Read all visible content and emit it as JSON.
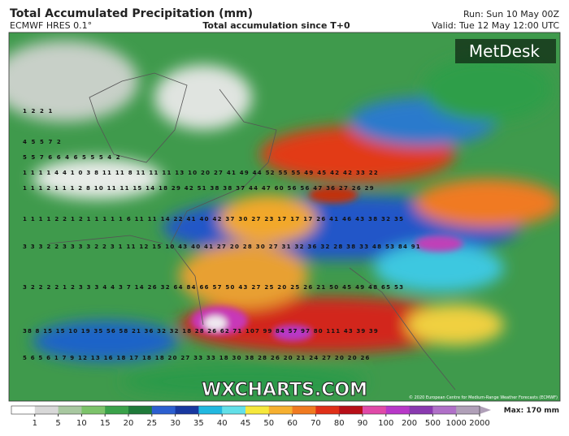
{
  "header": {
    "title": "Total Accumulated Precipitation (mm)",
    "model": "ECMWF HRES 0.1°",
    "subtitle": "Total accumulation since T+0",
    "run": "Run: Sun 10 May 00Z",
    "valid": "Valid: Tue 12 May 12:00 UTC"
  },
  "branding": {
    "logo": "MetDesk",
    "watermark": "WXCHARTS.COM",
    "copyright": "© 2020 European Centre for Medium-Range Weather Forecasts (ECMWF)"
  },
  "grid_labels": [
    "1 2 2 1",
    "4 5 5 7 2",
    "5 5 7 6 6 4 6 5 5 5 4 2",
    "1 1 1 1 4 4 1 0 3 8 11 11 8 11 11 11 13 10 20 27 41 49 44 52 55 55 49 45 42 42 33 22",
    "1 1 1 2 1 1 1 2 8 10 11 11 15 14 18 29 42 51 38 38 37 44 47 60 56 56 47 36 27 26 29",
    "1 1 1 1 2 2 1 2 1 1 1 1 1 6 11 11 14 22 41 40 42 37 30 27 23 17 17 17 26 41 46 43 38 32 35",
    "3 3 3 2 2 3 3 3 3 2 2 3 1 11 12 15 10 43 40 41 27 20 28 30 27 31 32 36 32 28 38 33 48 53 84 91",
    "3 2 2 2 2 1 2 3 3 3 4 4 3 7 14 26 32 64 84 66 57 50 43 27 25 20 25 26 21 50 45 49 48 65 53",
    "38 8 15 15 10 19 35 56 58 21 36 32 32 18 28 26 62 71 107 99 84 57 97 80 111 43 39 39",
    "5 6 5 6 1 7 9 12 13 16 18 17 18 18 20 27 33 33 18 30 38 28 26 20 21 24 27 20 20 26"
  ],
  "legend": {
    "ticks": [
      1,
      5,
      10,
      15,
      20,
      25,
      30,
      35,
      40,
      45,
      50,
      60,
      70,
      80,
      90,
      100,
      200,
      500,
      1000,
      2000
    ],
    "colors": [
      "#ffffff",
      "#d8d8d8",
      "#a8c8a0",
      "#7cc36a",
      "#3aa24a",
      "#1f7a3a",
      "#2c5fd0",
      "#1838a0",
      "#21b8e0",
      "#62e0e8",
      "#f6e83c",
      "#f6b030",
      "#f07a20",
      "#e03018",
      "#b80f18",
      "#e04aa8",
      "#b838c8",
      "#8a3ab0",
      "#b070c8",
      "#b0a0b8"
    ],
    "max": "Max: 170 mm"
  }
}
